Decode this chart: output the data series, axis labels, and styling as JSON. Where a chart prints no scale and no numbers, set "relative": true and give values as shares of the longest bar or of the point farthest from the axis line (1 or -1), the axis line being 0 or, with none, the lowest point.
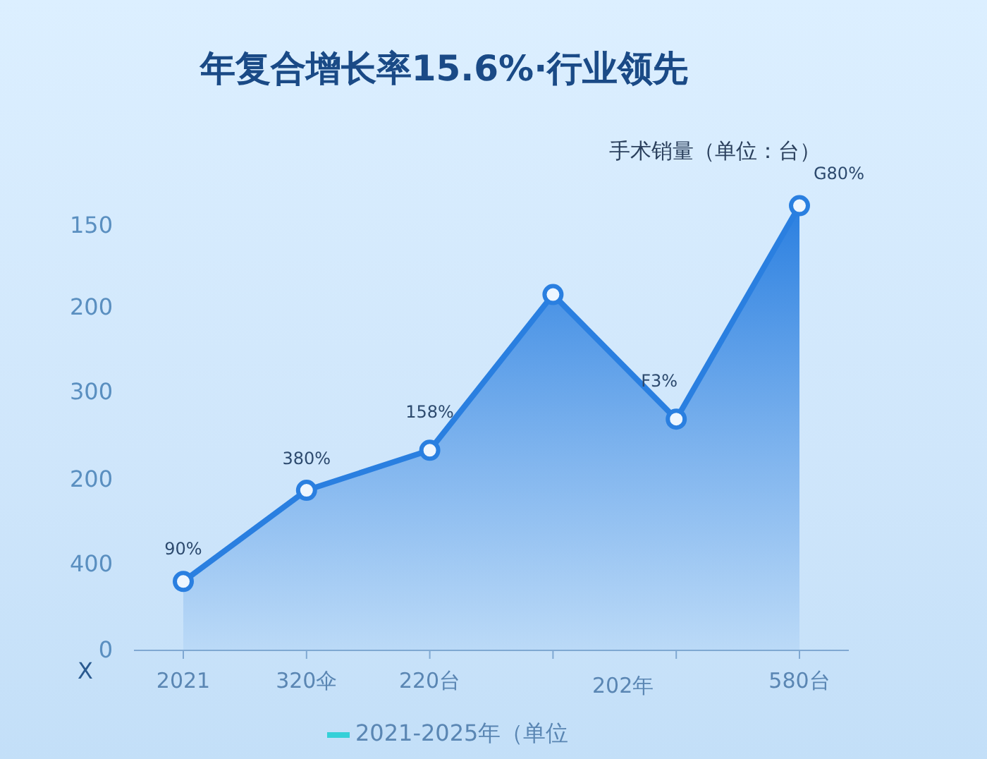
{
  "chart_data": {
    "type": "area",
    "title": "年复合增长率15.6%·行业领先",
    "ylabel": "手术销量（单位：台）",
    "xlabel": "2021-2025年（单位",
    "relative": true,
    "categories": [
      "2021",
      "320伞",
      "220台",
      null,
      null,
      "580台"
    ],
    "annotations": [
      "X",
      "0",
      "400",
      "200",
      "300",
      "200",
      "150",
      "202年",
      "90%",
      "380%",
      "158%",
      "F3%",
      "G80%"
    ],
    "series": [
      {
        "color": "#2a7fe0",
        "values": [
          0.155,
          0.36,
          0.45,
          0.8,
          0.52,
          1.0
        ]
      }
    ],
    "marker": "circle",
    "line_style": "solid"
  }
}
